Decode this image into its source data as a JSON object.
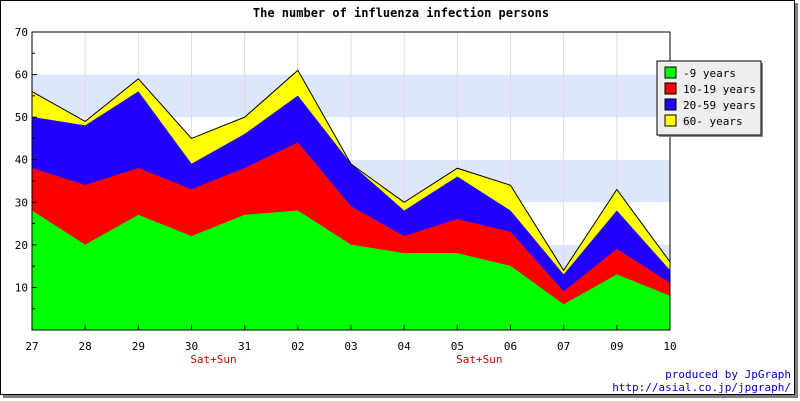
{
  "chart_data": {
    "type": "area",
    "stacked": true,
    "title": "The number of influenza infection persons",
    "categories": [
      "27",
      "28",
      "29",
      "30",
      "31",
      "02",
      "03",
      "04",
      "05",
      "06",
      "07",
      "09",
      "10"
    ],
    "weekend_labels": [
      {
        "category": "30",
        "text": "Sat+Sun"
      },
      {
        "category": "05",
        "text": "Sat+Sun"
      }
    ],
    "ylim": [
      0,
      70
    ],
    "yticks": [
      10,
      20,
      30,
      40,
      50,
      60,
      70
    ],
    "grid": true,
    "legend_position": "top-right",
    "series": [
      {
        "name": "-9 years",
        "color": "#00ff00",
        "values": [
          28,
          20,
          27,
          22,
          27,
          28,
          20,
          18,
          18,
          15,
          6,
          13,
          8
        ]
      },
      {
        "name": "10-19 years",
        "color": "#ff0000",
        "values": [
          10,
          14,
          11,
          11,
          11,
          16,
          9,
          4,
          8,
          8,
          3,
          6,
          3
        ]
      },
      {
        "name": "20-59 years",
        "color": "#2200ff",
        "values": [
          12,
          14,
          18,
          6,
          8,
          11,
          10,
          6,
          10,
          5,
          4,
          9,
          3
        ]
      },
      {
        "name": "60- years",
        "color": "#ffff00",
        "values": [
          6,
          1,
          3,
          6,
          4,
          6,
          0,
          2,
          2,
          6,
          1,
          5,
          2
        ]
      }
    ]
  },
  "credits": {
    "line1": "produced by JpGraph",
    "line2": "http://asial.co.jp/jpgraph/"
  }
}
